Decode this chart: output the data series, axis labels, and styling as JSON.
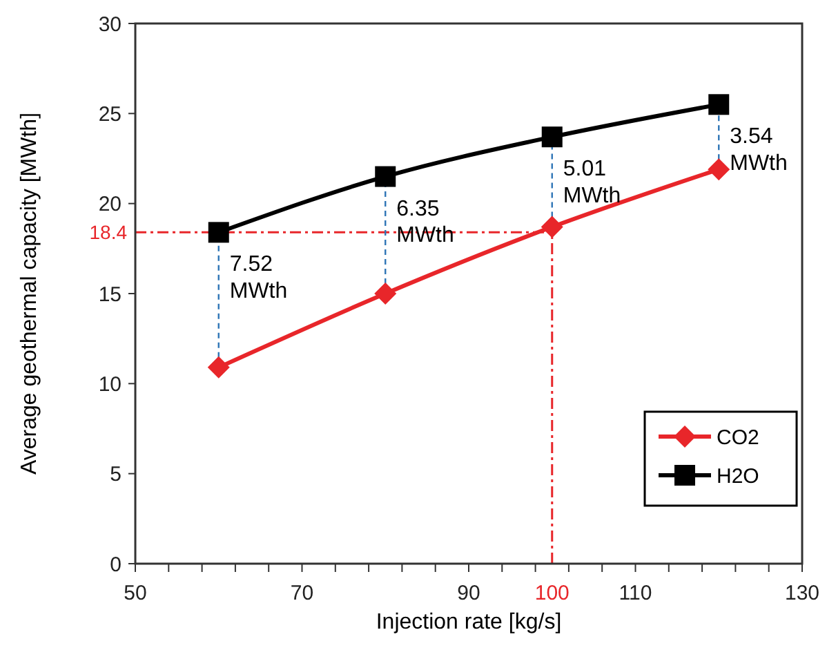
{
  "chart_data": {
    "type": "line",
    "xlabel": "Injection rate [kg/s]",
    "ylabel": "Average geothermal capacity [MWth]",
    "x": [
      60,
      80,
      100,
      120
    ],
    "series": [
      {
        "name": "CO2",
        "color": "#e8262a",
        "marker": "diamond",
        "values": [
          10.9,
          15.0,
          18.7,
          21.9
        ]
      },
      {
        "name": "H2O",
        "color": "#000000",
        "marker": "square",
        "values": [
          18.4,
          21.5,
          23.7,
          25.5
        ]
      }
    ],
    "xlim": [
      50,
      130
    ],
    "xticks": [
      50,
      {
        "value": 54,
        "label": null
      },
      {
        "value": 58,
        "label": null
      },
      {
        "value": 62,
        "label": null
      },
      {
        "value": 66,
        "label": null
      },
      70,
      {
        "value": 74,
        "label": null
      },
      {
        "value": 78,
        "label": null
      },
      {
        "value": 82,
        "label": null
      },
      {
        "value": 86,
        "label": null
      },
      90,
      {
        "value": 94,
        "label": null
      },
      {
        "value": 98,
        "label": null
      },
      {
        "value": 102,
        "label": null
      },
      {
        "value": 106,
        "label": null
      },
      110,
      {
        "value": 114,
        "label": null
      },
      {
        "value": 118,
        "label": null
      },
      {
        "value": 122,
        "label": null
      },
      {
        "value": 126,
        "label": null
      },
      130
    ],
    "ylim": [
      0,
      30
    ],
    "yticks": [
      0,
      5,
      10,
      15,
      20,
      25,
      30
    ],
    "ref_lines": [
      {
        "axis": "y",
        "value": 18.4,
        "label": "18.4",
        "color": "#e8262a",
        "line_style": "dashdot"
      },
      {
        "axis": "x",
        "value": 100,
        "label": "100",
        "color": "#e8262a",
        "line_style": "dashdot"
      }
    ],
    "annotations": [
      {
        "text": "7.52 MWth",
        "x": 60,
        "y": 18.4
      },
      {
        "text": "6.35 MWth",
        "x": 80,
        "y": 21.5
      },
      {
        "text": "5.01 MWth",
        "x": 100,
        "y": 23.7
      },
      {
        "text": "3.54 MWth",
        "x": 120,
        "y": 25.5
      }
    ],
    "grid": false,
    "legend": "bottom right",
    "line_style": "solid"
  }
}
